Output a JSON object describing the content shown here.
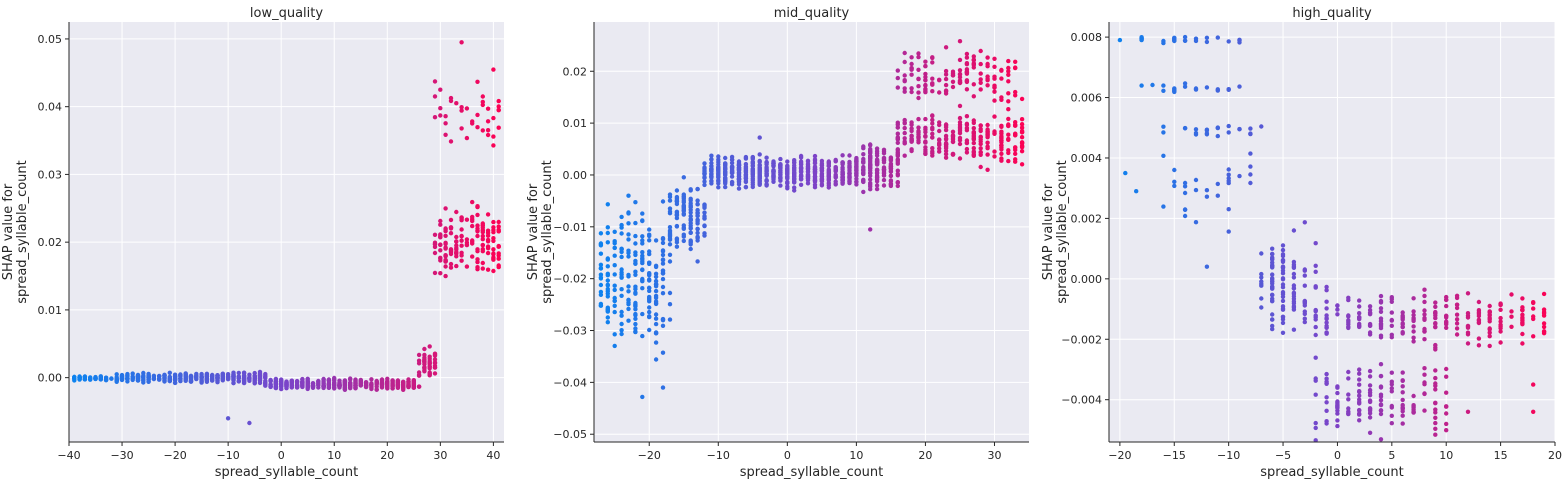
{
  "colors": {
    "plot_bg": "#eaeaf2",
    "grid": "#ffffff",
    "spine": "#262626",
    "low_feature": "#0a84f0",
    "mid_feature": "#7b44c9",
    "high_feature": "#ff0051"
  },
  "chart_data": [
    {
      "type": "scatter",
      "title": "low_quality",
      "xlabel": "spread_syllable_count",
      "ylabel_lines": [
        "SHAP value for",
        "spread_syllable_count"
      ],
      "xlim": [
        -40,
        42
      ],
      "ylim": [
        -0.0095,
        0.0525
      ],
      "xticks": [
        -40,
        -30,
        -20,
        -10,
        0,
        10,
        20,
        30,
        40
      ],
      "xtick_labels": [
        "−40",
        "−30",
        "−20",
        "−10",
        "0",
        "10",
        "20",
        "30",
        "40"
      ],
      "yticks": [
        0.0,
        0.01,
        0.02,
        0.03,
        0.04,
        0.05
      ],
      "ytick_labels": [
        "0.00",
        "0.01",
        "0.02",
        "0.03",
        "0.04",
        "0.05"
      ],
      "clusters": [
        {
          "x": [
            -40,
            -31
          ],
          "y_center": -0.0001,
          "y_spread": 0.0004,
          "n": 70
        },
        {
          "x": [
            -31,
            -10
          ],
          "y_center": 0.0,
          "y_spread": 0.0009,
          "n": 260
        },
        {
          "x": [
            -10,
            -3
          ],
          "y_center": 0.0,
          "y_spread": 0.0011,
          "n": 90
        },
        {
          "x": [
            -3,
            26
          ],
          "y_center": -0.001,
          "y_spread": 0.0011,
          "n": 420
        },
        {
          "x": [
            26,
            29
          ],
          "y_center": 0.002,
          "y_spread": 0.003,
          "n": 45
        },
        {
          "x": [
            29,
            42
          ],
          "y_center": 0.02,
          "y_spread": 0.007,
          "n": 160
        },
        {
          "x": [
            29,
            42
          ],
          "y_center": 0.04,
          "y_spread": 0.009,
          "n": 40
        }
      ],
      "points": [
        [
          -10,
          -0.006
        ],
        [
          -6,
          -0.0067
        ],
        [
          30,
          0.0387
        ],
        [
          34,
          0.0495
        ],
        [
          38,
          0.0365
        ]
      ]
    },
    {
      "type": "scatter",
      "title": "mid_quality",
      "xlabel": "spread_syllable_count",
      "ylabel_lines": [
        "SHAP value for",
        "spread_syllable_count"
      ],
      "xlim": [
        -28,
        35
      ],
      "ylim": [
        -0.0515,
        0.0295
      ],
      "xticks": [
        -20,
        -10,
        0,
        10,
        20,
        30
      ],
      "xtick_labels": [
        "−20",
        "−10",
        "0",
        "10",
        "20",
        "30"
      ],
      "yticks": [
        -0.05,
        -0.04,
        -0.03,
        -0.02,
        -0.01,
        0.0,
        0.01,
        0.02
      ],
      "ytick_labels": [
        "−0.05",
        "−0.04",
        "−0.03",
        "−0.02",
        "−0.01",
        "0.00",
        "0.01",
        "0.02"
      ],
      "clusters": [
        {
          "x": [
            -28,
            -17
          ],
          "y_center": -0.02,
          "y_spread": 0.02,
          "n": 240
        },
        {
          "x": [
            -17,
            -12
          ],
          "y_center": -0.008,
          "y_spread": 0.01,
          "n": 120
        },
        {
          "x": [
            -12,
            10
          ],
          "y_center": 0.0005,
          "y_spread": 0.004,
          "n": 550
        },
        {
          "x": [
            10,
            16
          ],
          "y_center": 0.0015,
          "y_spread": 0.006,
          "n": 170
        },
        {
          "x": [
            16,
            35
          ],
          "y_center": 0.007,
          "y_spread": 0.007,
          "n": 260
        },
        {
          "x": [
            16,
            35
          ],
          "y_center": 0.019,
          "y_spread": 0.007,
          "n": 140
        }
      ],
      "points": [
        [
          -21,
          -0.0428
        ],
        [
          -18,
          -0.041
        ],
        [
          -4,
          0.0072
        ],
        [
          25,
          0.0258
        ],
        [
          12,
          -0.0105
        ]
      ]
    },
    {
      "type": "scatter",
      "title": "high_quality",
      "xlabel": "spread_syllable_count",
      "ylabel_lines": [
        "SHAP value for",
        "spread_syllable_count"
      ],
      "xlim": [
        -21,
        20
      ],
      "ylim": [
        -0.0054,
        0.0085
      ],
      "xticks": [
        -20,
        -15,
        -10,
        -5,
        0,
        5,
        10,
        15,
        20
      ],
      "xtick_labels": [
        "−20",
        "−15",
        "−10",
        "−5",
        "0",
        "5",
        "10",
        "15",
        "20"
      ],
      "yticks": [
        -0.004,
        -0.002,
        0.0,
        0.002,
        0.004,
        0.006,
        0.008
      ],
      "ytick_labels": [
        "−0.004",
        "−0.002",
        "0.000",
        "0.002",
        "0.004",
        "0.006",
        "0.008"
      ],
      "clusters": [
        {
          "x": [
            -18,
            -9
          ],
          "y_center": 0.0079,
          "y_spread": 0.0002,
          "n": 25
        },
        {
          "x": [
            -18,
            -9
          ],
          "y_center": 0.0063,
          "y_spread": 0.0002,
          "n": 20
        },
        {
          "x": [
            -16,
            -7
          ],
          "y_center": 0.0049,
          "y_spread": 0.0003,
          "n": 22
        },
        {
          "x": [
            -16,
            -7
          ],
          "y_center": 0.003,
          "y_spread": 0.002,
          "n": 30
        },
        {
          "x": [
            -7,
            -2
          ],
          "y_center": -0.0003,
          "y_spread": 0.0025,
          "n": 110
        },
        {
          "x": [
            -2,
            20
          ],
          "y_center": -0.0013,
          "y_spread": 0.0012,
          "n": 230
        },
        {
          "x": [
            -2,
            10
          ],
          "y_center": -0.004,
          "y_spread": 0.0016,
          "n": 140
        }
      ],
      "points": [
        [
          -21,
          0.0079
        ],
        [
          -20,
          0.0079
        ],
        [
          -12,
          0.0004
        ],
        [
          -18.5,
          0.0029
        ],
        [
          -19.5,
          0.0035
        ],
        [
          18,
          -0.0044
        ],
        [
          18,
          -0.0035
        ],
        [
          19,
          -0.0005
        ],
        [
          12,
          -0.0044
        ],
        [
          10,
          -0.0048
        ]
      ]
    }
  ]
}
